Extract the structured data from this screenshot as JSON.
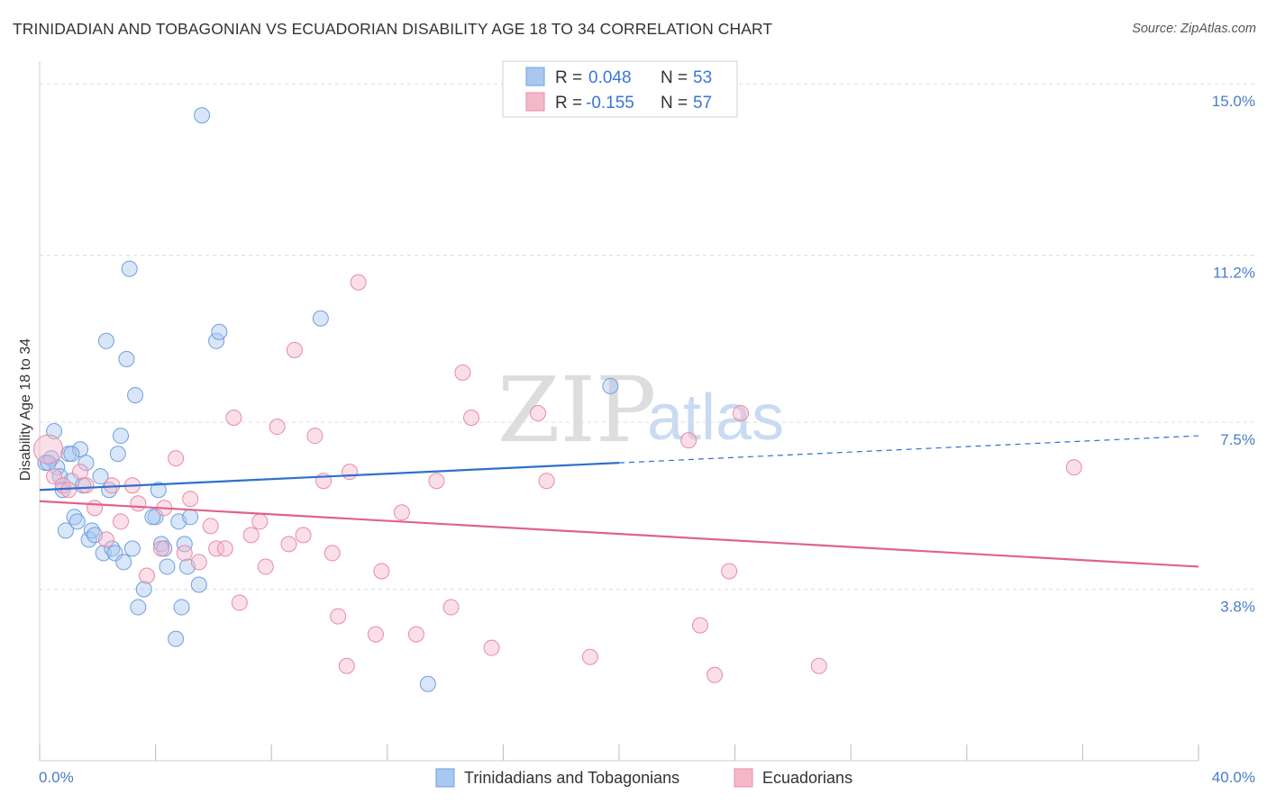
{
  "header": {
    "title": "TRINIDADIAN AND TOBAGONIAN VS ECUADORIAN DISABILITY AGE 18 TO 34 CORRELATION CHART",
    "source": "Source: ZipAtlas.com"
  },
  "watermark": {
    "zip": "ZIP",
    "atlas": "atlas"
  },
  "legend_box": {
    "rows": [
      {
        "r_label": "R =",
        "r_value": "0.048",
        "n_label": "N =",
        "n_value": "53",
        "color": "#a9c8f0"
      },
      {
        "r_label": "R =",
        "r_value": "-0.155",
        "n_label": "N =",
        "n_value": "57",
        "color": "#f5b8cb"
      }
    ]
  },
  "chart_data": {
    "type": "scatter",
    "ylabel": "Disability Age 18 to 34",
    "xlim": [
      0,
      40
    ],
    "ylim": [
      0,
      15.5
    ],
    "x_tick_labels": {
      "min": "0.0%",
      "max": "40.0%"
    },
    "y_ticks": [
      {
        "value": 3.8,
        "label": "3.8%"
      },
      {
        "value": 7.5,
        "label": "7.5%"
      },
      {
        "value": 11.2,
        "label": "11.2%"
      },
      {
        "value": 15.0,
        "label": "15.0%"
      }
    ],
    "grid": "horizontal dashed",
    "series": [
      {
        "name": "Trinidadians and Tobagonians",
        "color": "#a9c8f0",
        "stroke": "#6e9fe0",
        "line_color": "#2f6fce",
        "trend": {
          "x0": 0,
          "y0": 6.0,
          "x1": 20,
          "y1": 6.6,
          "x_dash_end": 40,
          "y_dash_end": 7.2
        },
        "points": [
          [
            0.2,
            6.6
          ],
          [
            0.4,
            6.7
          ],
          [
            0.5,
            7.3
          ],
          [
            0.6,
            6.5
          ],
          [
            0.7,
            6.3
          ],
          [
            0.8,
            6.0
          ],
          [
            0.9,
            5.1
          ],
          [
            1.0,
            6.8
          ],
          [
            1.1,
            6.2
          ],
          [
            1.2,
            5.4
          ],
          [
            1.3,
            5.3
          ],
          [
            1.4,
            6.9
          ],
          [
            1.5,
            6.1
          ],
          [
            1.6,
            6.6
          ],
          [
            1.7,
            4.9
          ],
          [
            1.8,
            5.1
          ],
          [
            1.9,
            5.0
          ],
          [
            2.1,
            6.3
          ],
          [
            2.2,
            4.6
          ],
          [
            2.3,
            9.3
          ],
          [
            2.4,
            6.0
          ],
          [
            2.5,
            4.7
          ],
          [
            2.6,
            4.6
          ],
          [
            2.7,
            6.8
          ],
          [
            2.8,
            7.2
          ],
          [
            2.9,
            4.4
          ],
          [
            3.0,
            8.9
          ],
          [
            3.1,
            10.9
          ],
          [
            3.2,
            4.7
          ],
          [
            3.3,
            8.1
          ],
          [
            3.4,
            3.4
          ],
          [
            3.6,
            3.8
          ],
          [
            4.0,
            5.4
          ],
          [
            4.1,
            6.0
          ],
          [
            4.2,
            4.8
          ],
          [
            4.3,
            4.7
          ],
          [
            4.4,
            4.3
          ],
          [
            4.7,
            2.7
          ],
          [
            4.8,
            5.3
          ],
          [
            4.9,
            3.4
          ],
          [
            5.0,
            4.8
          ],
          [
            5.1,
            4.3
          ],
          [
            5.2,
            5.4
          ],
          [
            5.5,
            3.9
          ],
          [
            5.6,
            14.3
          ],
          [
            6.1,
            9.3
          ],
          [
            6.2,
            9.5
          ],
          [
            9.7,
            9.8
          ],
          [
            13.4,
            1.7
          ],
          [
            19.7,
            8.3
          ],
          [
            0.3,
            6.6
          ],
          [
            1.1,
            6.8
          ],
          [
            3.9,
            5.4
          ]
        ]
      },
      {
        "name": "Ecuadorians",
        "color": "#f5b8cb",
        "stroke": "#e88aa7",
        "line_color": "#e0628c",
        "trend": {
          "x0": 0,
          "y0": 5.75,
          "x1": 40,
          "y1": 4.3
        },
        "points": [
          [
            0.3,
            6.9
          ],
          [
            0.5,
            6.3
          ],
          [
            0.8,
            6.1
          ],
          [
            1.0,
            6.0
          ],
          [
            1.4,
            6.4
          ],
          [
            1.6,
            6.1
          ],
          [
            1.9,
            5.6
          ],
          [
            2.3,
            4.9
          ],
          [
            2.5,
            6.1
          ],
          [
            2.8,
            5.3
          ],
          [
            3.2,
            6.1
          ],
          [
            3.4,
            5.7
          ],
          [
            3.7,
            4.1
          ],
          [
            4.2,
            4.7
          ],
          [
            4.3,
            5.6
          ],
          [
            4.7,
            6.7
          ],
          [
            5.0,
            4.6
          ],
          [
            5.2,
            5.8
          ],
          [
            5.5,
            4.4
          ],
          [
            5.9,
            5.2
          ],
          [
            6.1,
            4.7
          ],
          [
            6.4,
            4.7
          ],
          [
            6.7,
            7.6
          ],
          [
            6.9,
            3.5
          ],
          [
            7.3,
            5.0
          ],
          [
            7.6,
            5.3
          ],
          [
            7.8,
            4.3
          ],
          [
            8.2,
            7.4
          ],
          [
            8.6,
            4.8
          ],
          [
            8.8,
            9.1
          ],
          [
            9.1,
            5.0
          ],
          [
            9.5,
            7.2
          ],
          [
            9.8,
            6.2
          ],
          [
            10.1,
            4.6
          ],
          [
            10.3,
            3.2
          ],
          [
            10.6,
            2.1
          ],
          [
            10.7,
            6.4
          ],
          [
            11.0,
            10.6
          ],
          [
            11.6,
            2.8
          ],
          [
            11.8,
            4.2
          ],
          [
            12.5,
            5.5
          ],
          [
            13.0,
            2.8
          ],
          [
            13.7,
            6.2
          ],
          [
            14.2,
            3.4
          ],
          [
            14.6,
            8.6
          ],
          [
            14.9,
            7.6
          ],
          [
            15.6,
            2.5
          ],
          [
            17.2,
            7.7
          ],
          [
            17.5,
            6.2
          ],
          [
            19.0,
            2.3
          ],
          [
            22.4,
            7.1
          ],
          [
            22.8,
            3.0
          ],
          [
            23.3,
            1.9
          ],
          [
            23.8,
            4.2
          ],
          [
            24.2,
            7.7
          ],
          [
            26.9,
            2.1
          ],
          [
            35.7,
            6.5
          ]
        ]
      }
    ]
  },
  "bottom_legend": [
    {
      "label": "Trinidadians and Tobagonians",
      "color": "#a9c8f0",
      "stroke": "#6e9fe0"
    },
    {
      "label": "Ecuadorians",
      "color": "#f5b8cb",
      "stroke": "#e88aa7"
    }
  ]
}
